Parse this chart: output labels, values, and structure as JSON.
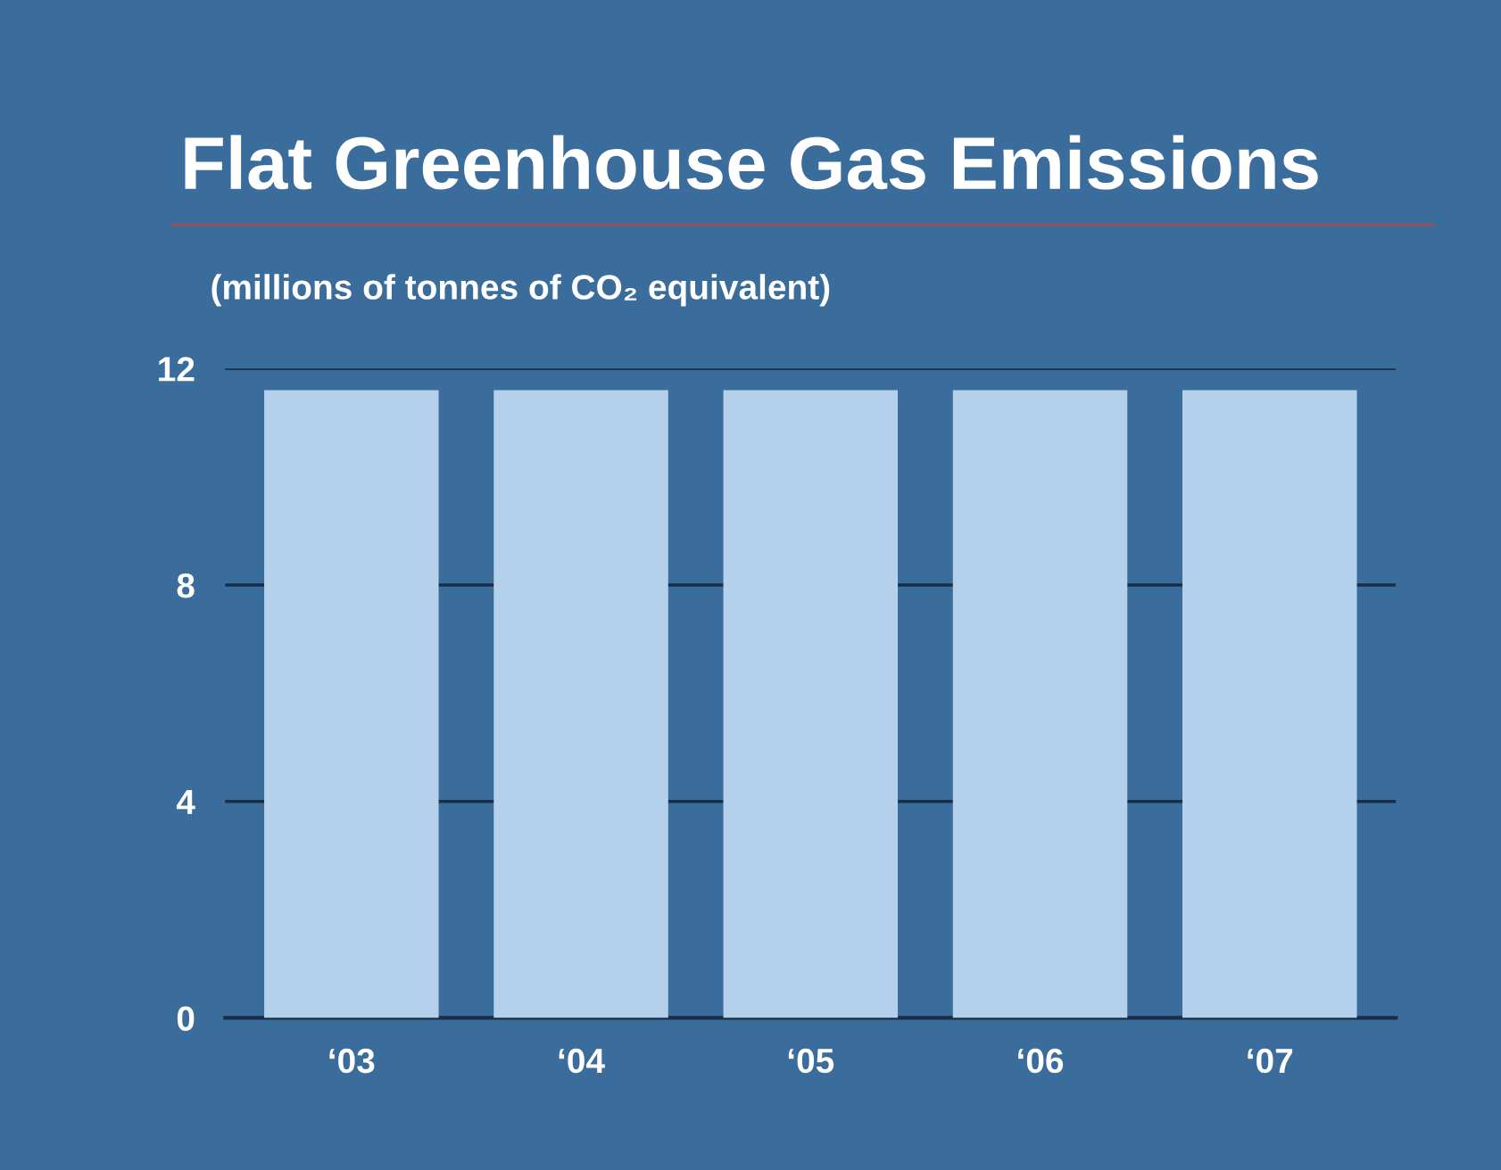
{
  "chart_data": {
    "type": "bar",
    "title": "Flat Greenhouse Gas Emissions",
    "subtitle": "(millions of tonnes of CO₂ equivalent)",
    "categories": [
      "‘03",
      "‘04",
      "‘05",
      "‘06",
      "‘07"
    ],
    "values": [
      11.6,
      11.6,
      11.6,
      11.6,
      11.6
    ],
    "color": "#b4d0ea",
    "ylim": [
      0,
      12
    ],
    "yticks": [
      0,
      4,
      8,
      12
    ],
    "grid": "y"
  }
}
